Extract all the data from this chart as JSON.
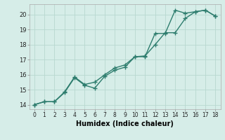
{
  "series1_x": [
    0,
    1,
    2,
    3,
    4,
    5,
    6,
    7,
    8,
    9,
    10,
    11,
    12,
    13,
    14,
    15,
    16,
    17,
    18
  ],
  "series1_y": [
    14.0,
    14.2,
    14.2,
    14.8,
    15.8,
    15.3,
    15.1,
    15.9,
    16.3,
    16.5,
    17.2,
    17.2,
    18.75,
    18.75,
    20.3,
    20.1,
    20.2,
    20.3,
    19.9
  ],
  "series2_x": [
    0,
    1,
    2,
    3,
    4,
    5,
    6,
    7,
    8,
    9,
    10,
    11,
    12,
    13,
    14,
    15,
    16,
    17,
    18
  ],
  "series2_y": [
    14.0,
    14.2,
    14.2,
    14.85,
    15.85,
    15.35,
    15.5,
    16.0,
    16.45,
    16.65,
    17.2,
    17.25,
    18.0,
    18.8,
    18.8,
    19.75,
    20.2,
    20.3,
    19.9
  ],
  "line_color": "#2e7d6e",
  "marker": "+",
  "markersize": 4,
  "linewidth": 1.0,
  "xlabel": "Humidex (Indice chaleur)",
  "xlabel_fontsize": 7,
  "ylabel_ticks": [
    14,
    15,
    16,
    17,
    18,
    19,
    20
  ],
  "xtick_labels": [
    "0",
    "1",
    "2",
    "3",
    "4",
    "5",
    "6",
    "7",
    "8",
    "9",
    "10",
    "11",
    "12",
    "13",
    "14",
    "15",
    "16",
    "17",
    "18"
  ],
  "xlim": [
    -0.5,
    18.5
  ],
  "ylim": [
    13.7,
    20.7
  ],
  "bg_color": "#d6ede8",
  "grid_color": "#b8d8d0"
}
